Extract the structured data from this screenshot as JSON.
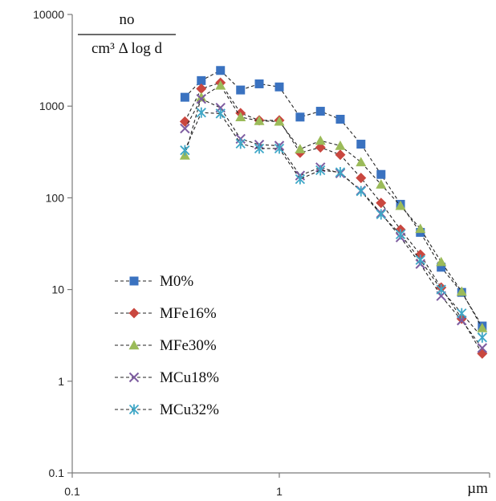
{
  "chart_data": {
    "type": "line",
    "x_scale": "log",
    "y_scale": "log",
    "xlim": [
      0.1,
      10
    ],
    "ylim": [
      0.1,
      10000
    ],
    "x_ticks": [
      0.1,
      1
    ],
    "x_tick_labels": [
      "0.1",
      "1"
    ],
    "y_ticks": [
      0.1,
      1,
      10,
      100,
      1000,
      10000
    ],
    "y_tick_labels": [
      "0.1",
      "1",
      "10",
      "100",
      "1000",
      "10000"
    ],
    "xlabel": "µm",
    "ylabel": {
      "numerator": "no",
      "denominator": "cm³ Δ log d"
    },
    "grid": false,
    "legend_position": "lower-left",
    "x": [
      0.35,
      0.42,
      0.52,
      0.65,
      0.8,
      1.0,
      1.26,
      1.58,
      1.97,
      2.48,
      3.1,
      3.85,
      4.8,
      6.05,
      7.6,
      9.55
    ],
    "series": [
      {
        "name": "M0%",
        "marker": "square",
        "color": "#3a72c0",
        "values": [
          1250,
          1900,
          2450,
          1500,
          1750,
          1620,
          760,
          880,
          720,
          385,
          180,
          85,
          42,
          17.5,
          9.3,
          4.0
        ]
      },
      {
        "name": "MFe16%",
        "marker": "diamond",
        "color": "#c9473f",
        "values": [
          680,
          1550,
          1800,
          840,
          700,
          700,
          310,
          355,
          295,
          165,
          88,
          45,
          24,
          10.5,
          4.8,
          2.0
        ]
      },
      {
        "name": "MFe30%",
        "marker": "triangle",
        "color": "#9bbb59",
        "values": [
          290,
          1250,
          1680,
          760,
          690,
          680,
          340,
          420,
          370,
          245,
          140,
          82,
          46,
          20,
          9.5,
          3.8
        ]
      },
      {
        "name": "MCu18%",
        "marker": "x",
        "color": "#7d5ca0",
        "values": [
          570,
          1200,
          960,
          440,
          380,
          370,
          175,
          215,
          185,
          120,
          68,
          37,
          19,
          8.5,
          4.6,
          2.3
        ]
      },
      {
        "name": "MCu32%",
        "marker": "star",
        "color": "#3fa7c7",
        "values": [
          330,
          850,
          830,
          390,
          345,
          345,
          160,
          200,
          190,
          118,
          66,
          40,
          21,
          10,
          5.5,
          3.0
        ]
      }
    ]
  }
}
